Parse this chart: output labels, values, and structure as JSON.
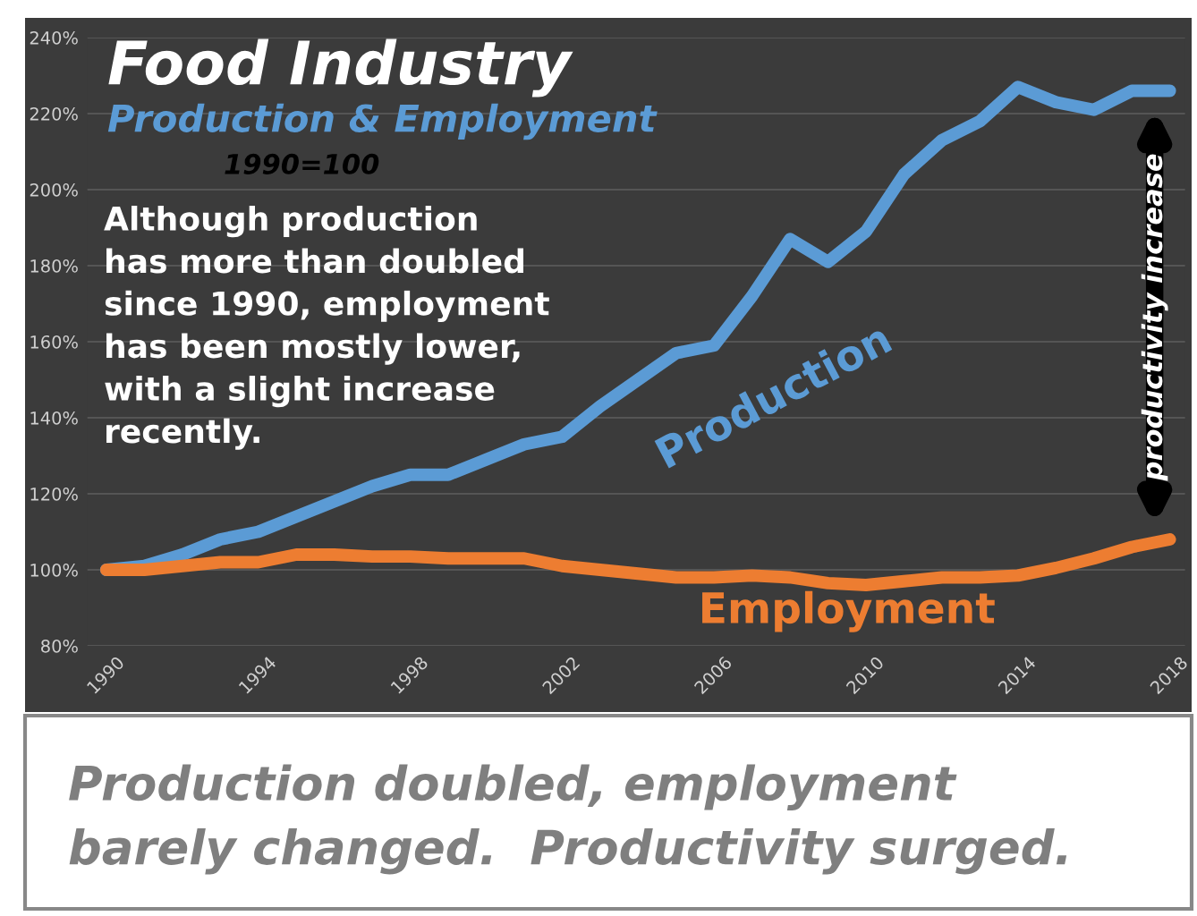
{
  "chart_data": {
    "type": "line",
    "title": "Food Industry",
    "subtitle": "Production & Employment",
    "x": [
      1990,
      1991,
      1992,
      1993,
      1994,
      1995,
      1996,
      1997,
      1998,
      1999,
      2000,
      2001,
      2002,
      2003,
      2004,
      2005,
      2006,
      2007,
      2008,
      2009,
      2010,
      2011,
      2012,
      2013,
      2014,
      2015,
      2016,
      2017,
      2018
    ],
    "series": [
      {
        "name": "Production",
        "color": "#5b9bd5",
        "values": [
          100,
          101,
          104,
          108,
          110,
          114,
          118,
          122,
          125,
          125,
          129,
          133,
          135,
          143,
          150,
          157,
          159,
          172,
          187,
          181,
          189,
          204,
          213,
          218,
          227,
          223,
          221,
          226,
          226
        ]
      },
      {
        "name": "Employment",
        "color": "#ed7d31",
        "values": [
          100,
          100,
          101,
          102,
          102,
          104,
          104,
          103.5,
          103.5,
          103,
          103,
          103,
          101,
          100,
          99,
          98,
          98,
          98.5,
          98,
          96.5,
          96,
          97,
          98,
          98,
          98.5,
          100.5,
          103,
          106,
          108
        ]
      }
    ],
    "xlim": [
      1989.5,
      2018.4
    ],
    "xticks": [
      1990,
      1994,
      1998,
      2002,
      2006,
      2010,
      2014,
      2018
    ],
    "ylim": [
      80,
      240
    ],
    "yticks": [
      {
        "value": 80,
        "label": "80%"
      },
      {
        "value": 100,
        "label": "100%"
      },
      {
        "value": 120,
        "label": "120%"
      },
      {
        "value": 140,
        "label": "140%"
      },
      {
        "value": 160,
        "label": "160%"
      },
      {
        "value": 180,
        "label": "180%"
      },
      {
        "value": 200,
        "label": "200%"
      },
      {
        "value": 220,
        "label": "220%"
      },
      {
        "value": 240,
        "label": "240%"
      }
    ],
    "grid": "y",
    "legend": false,
    "marker": "none",
    "line_style": "solid",
    "annotations": [
      "1990=100",
      "Although production\nhas more than doubled\nsince 1990, employment\nhas been mostly lower,\nwith a slight increase\nrecently.",
      "productivity increase",
      "Production doubled, employment\nbarely changed.  Productivity surged."
    ]
  }
}
